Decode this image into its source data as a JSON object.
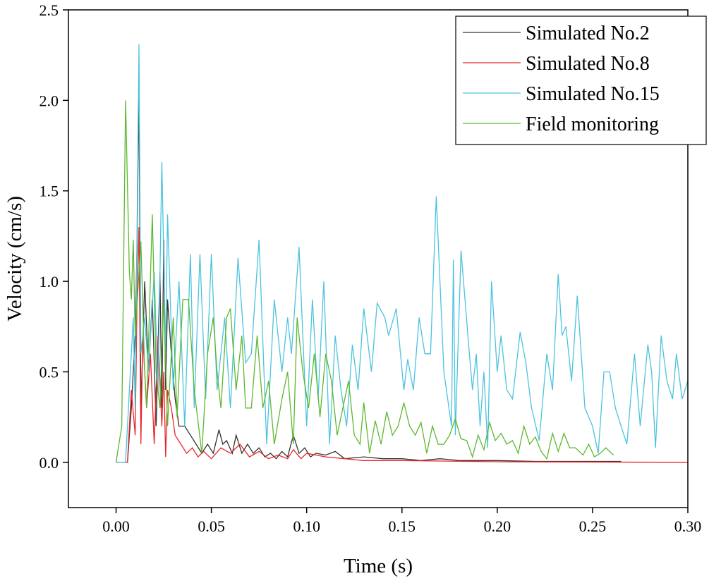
{
  "chart_data": {
    "type": "line",
    "title": "",
    "xlabel": "Time (s)",
    "ylabel": "Velocity (cm/s)",
    "xlim": [
      -0.025,
      0.3
    ],
    "ylim": [
      -0.25,
      2.5
    ],
    "xticks": [
      "0.00",
      "0.05",
      "0.10",
      "0.15",
      "0.20",
      "0.25",
      "0.30"
    ],
    "yticks": [
      "0.0",
      "0.5",
      "1.0",
      "1.5",
      "2.0",
      "2.5"
    ],
    "grid": false,
    "legend_position": "top-right",
    "series": [
      {
        "name": "Simulated No.2",
        "color": "#333333",
        "points": [
          [
            0,
            0
          ],
          [
            0.006,
            0
          ],
          [
            0.008,
            0.3
          ],
          [
            0.01,
            0.7
          ],
          [
            0.011,
            1.2
          ],
          [
            0.012,
            2.08
          ],
          [
            0.013,
            0.3
          ],
          [
            0.015,
            1.0
          ],
          [
            0.017,
            0.5
          ],
          [
            0.019,
            0.9
          ],
          [
            0.021,
            0.2
          ],
          [
            0.023,
            1.05
          ],
          [
            0.024,
            0.3
          ],
          [
            0.025,
            1.23
          ],
          [
            0.026,
            0.4
          ],
          [
            0.027,
            0.9
          ],
          [
            0.029,
            0.6
          ],
          [
            0.031,
            0.35
          ],
          [
            0.033,
            0.2
          ],
          [
            0.036,
            0.2
          ],
          [
            0.039,
            0.15
          ],
          [
            0.042,
            0.1
          ],
          [
            0.045,
            0.05
          ],
          [
            0.048,
            0.1
          ],
          [
            0.051,
            0.05
          ],
          [
            0.054,
            0.18
          ],
          [
            0.056,
            0.1
          ],
          [
            0.058,
            0.12
          ],
          [
            0.061,
            0.05
          ],
          [
            0.063,
            0.15
          ],
          [
            0.066,
            0.05
          ],
          [
            0.069,
            0.1
          ],
          [
            0.072,
            0.05
          ],
          [
            0.075,
            0.08
          ],
          [
            0.078,
            0.03
          ],
          [
            0.081,
            0.05
          ],
          [
            0.084,
            0.02
          ],
          [
            0.087,
            0.06
          ],
          [
            0.09,
            0.03
          ],
          [
            0.093,
            0.15
          ],
          [
            0.096,
            0.05
          ],
          [
            0.099,
            0.08
          ],
          [
            0.102,
            0.03
          ],
          [
            0.105,
            0.05
          ],
          [
            0.11,
            0.04
          ],
          [
            0.115,
            0.06
          ],
          [
            0.12,
            0.02
          ],
          [
            0.13,
            0.03
          ],
          [
            0.14,
            0.02
          ],
          [
            0.15,
            0.02
          ],
          [
            0.16,
            0.01
          ],
          [
            0.17,
            0.02
          ],
          [
            0.18,
            0.01
          ],
          [
            0.2,
            0.01
          ],
          [
            0.22,
            0.005
          ],
          [
            0.24,
            0.005
          ],
          [
            0.265,
            0.005
          ]
        ]
      },
      {
        "name": "Simulated No.8",
        "color": "#e8262a",
        "points": [
          [
            0,
            0
          ],
          [
            0.006,
            0
          ],
          [
            0.008,
            0.4
          ],
          [
            0.01,
            0.15
          ],
          [
            0.011,
            0.9
          ],
          [
            0.012,
            1.3
          ],
          [
            0.013,
            0.1
          ],
          [
            0.014,
            0.7
          ],
          [
            0.016,
            0.3
          ],
          [
            0.018,
            0.6
          ],
          [
            0.02,
            0.1
          ],
          [
            0.022,
            0.7
          ],
          [
            0.024,
            0.2
          ],
          [
            0.025,
            0.5
          ],
          [
            0.026,
            0.03
          ],
          [
            0.027,
            0.4
          ],
          [
            0.029,
            0.3
          ],
          [
            0.031,
            0.15
          ],
          [
            0.034,
            0.1
          ],
          [
            0.037,
            0.05
          ],
          [
            0.04,
            0.08
          ],
          [
            0.043,
            0.03
          ],
          [
            0.046,
            0.06
          ],
          [
            0.05,
            0.02
          ],
          [
            0.055,
            0.08
          ],
          [
            0.06,
            0.05
          ],
          [
            0.065,
            0.1
          ],
          [
            0.07,
            0.03
          ],
          [
            0.075,
            0.06
          ],
          [
            0.08,
            0.02
          ],
          [
            0.085,
            0.04
          ],
          [
            0.09,
            0.02
          ],
          [
            0.093,
            0.07
          ],
          [
            0.097,
            0.02
          ],
          [
            0.1,
            0.05
          ],
          [
            0.11,
            0.03
          ],
          [
            0.12,
            0.02
          ],
          [
            0.13,
            0.01
          ],
          [
            0.15,
            0.01
          ],
          [
            0.2,
            0.003
          ],
          [
            0.3,
            0
          ]
        ]
      },
      {
        "name": "Simulated No.15",
        "color": "#4cc3de",
        "points": [
          [
            0,
            0
          ],
          [
            0.005,
            0
          ],
          [
            0.007,
            0.4
          ],
          [
            0.009,
            0.8
          ],
          [
            0.01,
            0.3
          ],
          [
            0.012,
            2.31
          ],
          [
            0.013,
            0.6
          ],
          [
            0.015,
            0.8
          ],
          [
            0.017,
            0.5
          ],
          [
            0.02,
            1.05
          ],
          [
            0.022,
            0.4
          ],
          [
            0.024,
            1.66
          ],
          [
            0.026,
            0.6
          ],
          [
            0.027,
            1.37
          ],
          [
            0.03,
            0.4
          ],
          [
            0.033,
            1.0
          ],
          [
            0.036,
            0.2
          ],
          [
            0.039,
            1.15
          ],
          [
            0.041,
            0.3
          ],
          [
            0.044,
            1.15
          ],
          [
            0.047,
            0.35
          ],
          [
            0.05,
            1.15
          ],
          [
            0.053,
            0.4
          ],
          [
            0.057,
            0.8
          ],
          [
            0.06,
            0.3
          ],
          [
            0.064,
            1.13
          ],
          [
            0.068,
            0.55
          ],
          [
            0.071,
            0.6
          ],
          [
            0.075,
            1.23
          ],
          [
            0.079,
            0.1
          ],
          [
            0.083,
            0.9
          ],
          [
            0.087,
            0.5
          ],
          [
            0.09,
            0.8
          ],
          [
            0.092,
            0.6
          ],
          [
            0.096,
            1.19
          ],
          [
            0.1,
            0.2
          ],
          [
            0.103,
            0.9
          ],
          [
            0.106,
            0.35
          ],
          [
            0.109,
            1.0
          ],
          [
            0.112,
            0.1
          ],
          [
            0.115,
            0.7
          ],
          [
            0.118,
            0.4
          ],
          [
            0.121,
            0.2
          ],
          [
            0.124,
            0.65
          ],
          [
            0.127,
            0.4
          ],
          [
            0.13,
            0.85
          ],
          [
            0.134,
            0.5
          ],
          [
            0.137,
            0.88
          ],
          [
            0.141,
            0.8
          ],
          [
            0.143,
            0.7
          ],
          [
            0.147,
            0.85
          ],
          [
            0.151,
            0.4
          ],
          [
            0.153,
            0.57
          ],
          [
            0.156,
            0.4
          ],
          [
            0.159,
            0.8
          ],
          [
            0.162,
            0.6
          ],
          [
            0.165,
            0.6
          ],
          [
            0.168,
            1.47
          ],
          [
            0.172,
            0.5
          ],
          [
            0.176,
            0.2
          ],
          [
            0.177,
            1.12
          ],
          [
            0.178,
            0.15
          ],
          [
            0.181,
            1.17
          ],
          [
            0.185,
            0.65
          ],
          [
            0.187,
            0.4
          ],
          [
            0.189,
            0.6
          ],
          [
            0.191,
            0.2
          ],
          [
            0.193,
            0.5
          ],
          [
            0.195,
            0.08
          ],
          [
            0.197,
            1.0
          ],
          [
            0.2,
            0.5
          ],
          [
            0.202,
            0.7
          ],
          [
            0.205,
            0.4
          ],
          [
            0.208,
            0.35
          ],
          [
            0.212,
            0.72
          ],
          [
            0.215,
            0.55
          ],
          [
            0.218,
            0.3
          ],
          [
            0.222,
            0.12
          ],
          [
            0.226,
            0.6
          ],
          [
            0.229,
            0.4
          ],
          [
            0.232,
            1.04
          ],
          [
            0.234,
            0.7
          ],
          [
            0.236,
            0.75
          ],
          [
            0.239,
            0.45
          ],
          [
            0.242,
            0.92
          ],
          [
            0.246,
            0.3
          ],
          [
            0.248,
            0.25
          ],
          [
            0.25,
            0.2
          ],
          [
            0.253,
            0.05
          ],
          [
            0.256,
            0.5
          ],
          [
            0.259,
            0.5
          ],
          [
            0.262,
            0.3
          ],
          [
            0.265,
            0.2
          ],
          [
            0.268,
            0.1
          ],
          [
            0.272,
            0.6
          ],
          [
            0.275,
            0.2
          ],
          [
            0.279,
            0.65
          ],
          [
            0.281,
            0.5
          ],
          [
            0.283,
            0.08
          ],
          [
            0.286,
            0.7
          ],
          [
            0.289,
            0.45
          ],
          [
            0.292,
            0.35
          ],
          [
            0.294,
            0.6
          ],
          [
            0.297,
            0.35
          ],
          [
            0.3,
            0.45
          ]
        ]
      },
      {
        "name": "Field monitoring",
        "color": "#5cb82e",
        "points": [
          [
            0,
            0
          ],
          [
            0.003,
            0.2
          ],
          [
            0.005,
            2.0
          ],
          [
            0.007,
            1.05
          ],
          [
            0.008,
            0.9
          ],
          [
            0.009,
            1.23
          ],
          [
            0.01,
            0.7
          ],
          [
            0.013,
            1.22
          ],
          [
            0.015,
            0.5
          ],
          [
            0.016,
            0.3
          ],
          [
            0.019,
            1.37
          ],
          [
            0.021,
            0.5
          ],
          [
            0.023,
            0.3
          ],
          [
            0.025,
            0.9
          ],
          [
            0.027,
            0.2
          ],
          [
            0.03,
            0.8
          ],
          [
            0.032,
            0.25
          ],
          [
            0.035,
            0.9
          ],
          [
            0.038,
            0.9
          ],
          [
            0.041,
            0.4
          ],
          [
            0.045,
            0.05
          ],
          [
            0.048,
            0.6
          ],
          [
            0.051,
            0.8
          ],
          [
            0.053,
            0.5
          ],
          [
            0.055,
            0.3
          ],
          [
            0.058,
            0.8
          ],
          [
            0.06,
            0.85
          ],
          [
            0.063,
            0.4
          ],
          [
            0.066,
            0.7
          ],
          [
            0.068,
            0.3
          ],
          [
            0.071,
            0.3
          ],
          [
            0.074,
            0.7
          ],
          [
            0.077,
            0.3
          ],
          [
            0.08,
            0.45
          ],
          [
            0.083,
            0.1
          ],
          [
            0.087,
            0.35
          ],
          [
            0.09,
            0.5
          ],
          [
            0.093,
            0.1
          ],
          [
            0.095,
            0.8
          ],
          [
            0.098,
            0.5
          ],
          [
            0.101,
            0.3
          ],
          [
            0.104,
            0.6
          ],
          [
            0.107,
            0.25
          ],
          [
            0.11,
            0.6
          ],
          [
            0.113,
            0.45
          ],
          [
            0.116,
            0.15
          ],
          [
            0.119,
            0.3
          ],
          [
            0.122,
            0.45
          ],
          [
            0.125,
            0.15
          ],
          [
            0.128,
            0.1
          ],
          [
            0.13,
            0.33
          ],
          [
            0.133,
            0.05
          ],
          [
            0.136,
            0.23
          ],
          [
            0.139,
            0.1
          ],
          [
            0.142,
            0.28
          ],
          [
            0.145,
            0.15
          ],
          [
            0.148,
            0.2
          ],
          [
            0.151,
            0.33
          ],
          [
            0.154,
            0.2
          ],
          [
            0.157,
            0.15
          ],
          [
            0.16,
            0.22
          ],
          [
            0.163,
            0.05
          ],
          [
            0.166,
            0.2
          ],
          [
            0.169,
            0.1
          ],
          [
            0.172,
            0.1
          ],
          [
            0.175,
            0.15
          ],
          [
            0.178,
            0.24
          ],
          [
            0.181,
            0.13
          ],
          [
            0.184,
            0.12
          ],
          [
            0.187,
            0.03
          ],
          [
            0.19,
            0.15
          ],
          [
            0.193,
            0.07
          ],
          [
            0.196,
            0.22
          ],
          [
            0.199,
            0.12
          ],
          [
            0.202,
            0.16
          ],
          [
            0.205,
            0.1
          ],
          [
            0.208,
            0.12
          ],
          [
            0.211,
            0.05
          ],
          [
            0.214,
            0.2
          ],
          [
            0.217,
            0.1
          ],
          [
            0.22,
            0.14
          ],
          [
            0.223,
            0.06
          ],
          [
            0.226,
            0.02
          ],
          [
            0.229,
            0.16
          ],
          [
            0.232,
            0.06
          ],
          [
            0.235,
            0.16
          ],
          [
            0.238,
            0.08
          ],
          [
            0.241,
            0.08
          ],
          [
            0.245,
            0.04
          ],
          [
            0.248,
            0.1
          ],
          [
            0.251,
            0.03
          ],
          [
            0.254,
            0.05
          ],
          [
            0.257,
            0.08
          ],
          [
            0.261,
            0.04
          ]
        ]
      }
    ]
  }
}
